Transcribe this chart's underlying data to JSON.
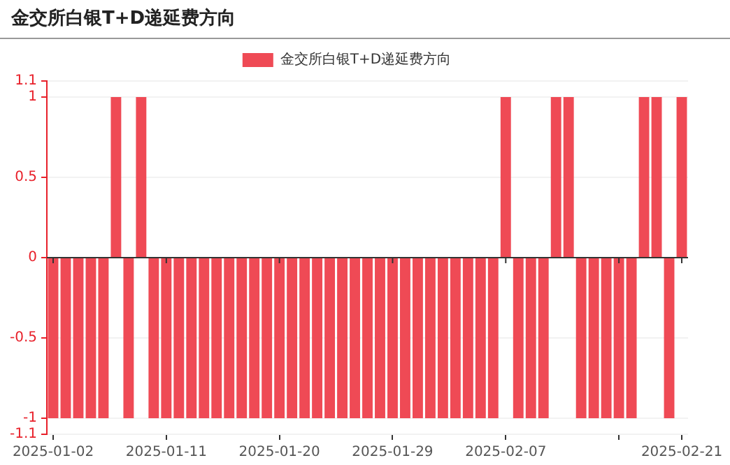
{
  "chart_data": {
    "type": "bar",
    "title": "金交所白银T+D递延费方向",
    "x": [
      "2025-01-02",
      "2025-01-03",
      "2025-01-04",
      "2025-01-05",
      "2025-01-06",
      "2025-01-07",
      "2025-01-08",
      "2025-01-09",
      "2025-01-10",
      "2025-01-11",
      "2025-01-12",
      "2025-01-13",
      "2025-01-14",
      "2025-01-15",
      "2025-01-16",
      "2025-01-17",
      "2025-01-18",
      "2025-01-19",
      "2025-01-20",
      "2025-01-21",
      "2025-01-22",
      "2025-01-23",
      "2025-01-24",
      "2025-01-25",
      "2025-01-26",
      "2025-01-27",
      "2025-01-28",
      "2025-01-29",
      "2025-01-30",
      "2025-01-31",
      "2025-02-01",
      "2025-02-02",
      "2025-02-03",
      "2025-02-04",
      "2025-02-05",
      "2025-02-06",
      "2025-02-07",
      "2025-02-08",
      "2025-02-09",
      "2025-02-10",
      "2025-02-11",
      "2025-02-12",
      "2025-02-13",
      "2025-02-14",
      "2025-02-15",
      "2025-02-16",
      "2025-02-17",
      "2025-02-18",
      "2025-02-19",
      "2025-02-20",
      "2025-02-21"
    ],
    "series": [
      {
        "name": "金交所白银T+D递延费方向",
        "color": "#ef4a55",
        "values": [
          -1,
          -1,
          -1,
          -1,
          -1,
          1,
          -1,
          1,
          -1,
          -1,
          -1,
          -1,
          -1,
          -1,
          -1,
          -1,
          -1,
          -1,
          -1,
          -1,
          -1,
          -1,
          -1,
          -1,
          -1,
          -1,
          -1,
          -1,
          -1,
          -1,
          -1,
          -1,
          -1,
          -1,
          -1,
          -1,
          1,
          -1,
          -1,
          -1,
          1,
          1,
          -1,
          -1,
          -1,
          -1,
          -1,
          1,
          1,
          -1,
          1
        ]
      }
    ],
    "xlim": [
      "2025-01-01T12:00",
      "2025-02-21T12:00"
    ],
    "xticks": [
      "2025-01-02",
      "2025-01-11",
      "2025-01-20",
      "2025-01-29",
      "2025-02-07",
      {
        "value": "2025-02-16",
        "label": null
      },
      "2025-02-21"
    ],
    "ylim": [
      -1.1,
      1.1
    ],
    "yticks": [
      -1.1,
      -1,
      -0.5,
      0,
      0.5,
      1,
      1.1
    ],
    "grid": "y",
    "legend": "top"
  }
}
